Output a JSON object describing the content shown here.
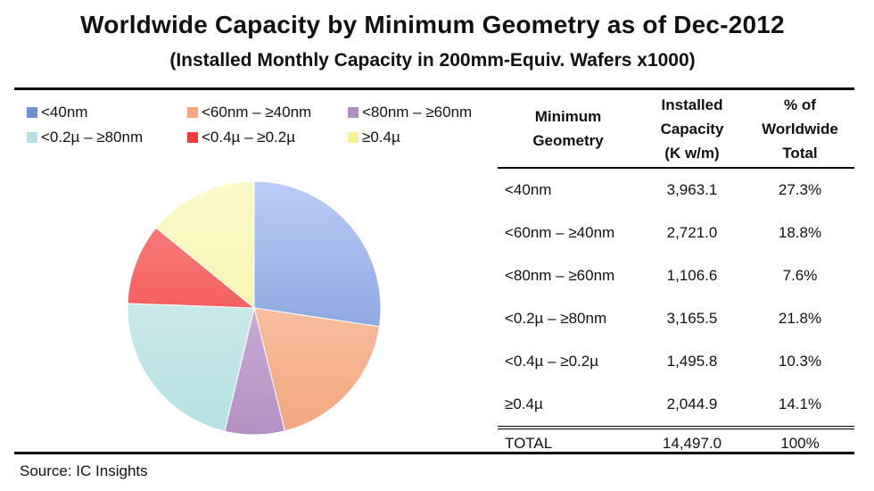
{
  "title": "Worldwide Capacity by Minimum Geometry as of Dec-2012",
  "subtitle": "(Installed Monthly Capacity in 200mm-Equiv. Wafers x1000)",
  "source": "Source:  IC Insights",
  "table": {
    "headers": [
      "Minimum Geometry",
      "Installed Capacity (K w/m)",
      "% of Worldwide Total"
    ],
    "header_lines": [
      [
        "Minimum",
        "Geometry"
      ],
      [
        "Installed",
        "Capacity",
        "(K w/m)"
      ],
      [
        "% of",
        "Worldwide",
        "Total"
      ]
    ],
    "rows": [
      [
        "<40nm",
        "3,963.1",
        "27.3%"
      ],
      [
        "<60nm – ≥40nm",
        "2,721.0",
        "18.8%"
      ],
      [
        "<80nm – ≥60nm",
        "1,106.6",
        "7.6%"
      ],
      [
        "<0.2µ – ≥80nm",
        "3,165.5",
        "21.8%"
      ],
      [
        "<0.4µ – ≥0.2µ",
        "1,495.8",
        "10.3%"
      ],
      [
        "≥0.4µ",
        "2,044.9",
        "14.1%"
      ]
    ],
    "total": [
      "TOTAL",
      "14,497.0",
      "100%"
    ]
  },
  "chart_data": {
    "type": "pie",
    "title": "Worldwide Capacity by Minimum Geometry as of Dec-2012",
    "subtitle": "(Installed Monthly Capacity in 200mm-Equiv. Wafers x1000)",
    "legend_position": "top",
    "categories": [
      "<40nm",
      "<60nm – ≥40nm",
      "<80nm – ≥60nm",
      "<0.2µ – ≥80nm",
      "<0.4µ – ≥0.2µ",
      "≥0.4µ"
    ],
    "values": [
      3963.1,
      2721.0,
      1106.6,
      3165.5,
      1495.8,
      2044.9
    ],
    "colors": [
      "#6f8fd0",
      "#f3a77e",
      "#b48fc4",
      "#b5e0e1",
      "#f23b3b",
      "#f6f29a"
    ],
    "gradient_light": [
      "#b9ccf6",
      "#f9d3bd",
      "#dbc8e4",
      "#dbf1f1",
      "#f98686",
      "#fbf9cc"
    ]
  }
}
